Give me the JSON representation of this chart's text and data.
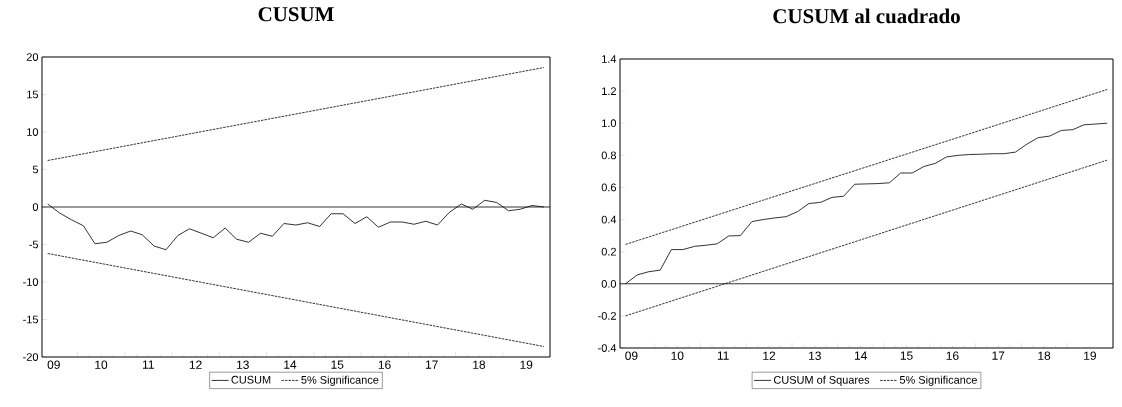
{
  "chart_data": [
    {
      "type": "line",
      "title": "CUSUM",
      "x": [
        "2009-05-15",
        "2009-08-15",
        "2009-11-15",
        "2010-02-15",
        "2010-05-15",
        "2010-08-15",
        "2010-11-15",
        "2011-02-15",
        "2011-05-15",
        "2011-08-15",
        "2011-11-15",
        "2012-02-15",
        "2012-05-15",
        "2012-08-15",
        "2012-11-15",
        "2013-02-15",
        "2013-05-15",
        "2013-08-15",
        "2013-11-15",
        "2014-02-15",
        "2014-05-15",
        "2014-08-15",
        "2014-11-15",
        "2015-02-15",
        "2015-05-15",
        "2015-08-15",
        "2015-11-15",
        "2016-02-15",
        "2016-05-15",
        "2016-08-15",
        "2016-11-15",
        "2017-02-15",
        "2017-05-15",
        "2017-08-15",
        "2017-11-15",
        "2018-02-15",
        "2018-05-15",
        "2018-08-15",
        "2018-11-15",
        "2019-02-15",
        "2019-05-15",
        "2019-08-15",
        "2019-11-15"
      ],
      "series": [
        {
          "name": "CUSUM",
          "color": "#000000",
          "line_style": "solid",
          "values": [
            0.4,
            -0.8,
            -1.7,
            -2.5,
            -4.9,
            -4.7,
            -3.8,
            -3.2,
            -3.7,
            -5.2,
            -5.7,
            -3.8,
            -2.9,
            -3.5,
            -4.1,
            -2.8,
            -4.3,
            -4.7,
            -3.5,
            -3.9,
            -2.2,
            -2.4,
            -2.1,
            -2.6,
            -0.9,
            -0.9,
            -2.2,
            -1.3,
            -2.7,
            -2.0,
            -2.0,
            -2.3,
            -1.9,
            -2.4,
            -0.7,
            0.4,
            -0.3,
            0.9,
            0.6,
            -0.5,
            -0.3,
            0.2,
            0.0
          ]
        },
        {
          "name": "5% Significance",
          "color": "#000000",
          "line_style": "dashed",
          "x": [
            "2009-05-15",
            "2019-11-15"
          ],
          "values": [
            6.2,
            18.6
          ]
        },
        {
          "color": "#000000",
          "line_style": "dashed",
          "x": [
            "2009-05-15",
            "2019-11-15"
          ],
          "values": [
            -6.2,
            -18.6
          ]
        }
      ],
      "xlim": [
        "2009-04-01",
        "2020-01-01"
      ],
      "xticks": [
        {
          "value": "2009-07-01",
          "label": "09"
        },
        {
          "value": "2010-07-01",
          "label": "10"
        },
        {
          "value": "2011-07-01",
          "label": "11"
        },
        {
          "value": "2012-07-01",
          "label": "12"
        },
        {
          "value": "2013-07-01",
          "label": "13"
        },
        {
          "value": "2014-07-01",
          "label": "14"
        },
        {
          "value": "2015-07-01",
          "label": "15"
        },
        {
          "value": "2016-07-01",
          "label": "16"
        },
        {
          "value": "2017-07-01",
          "label": "17"
        },
        {
          "value": "2018-07-01",
          "label": "18"
        },
        {
          "value": "2019-07-01",
          "label": "19"
        },
        {
          "value": "2010-01-01",
          "label": null
        },
        {
          "value": "2011-01-01",
          "label": null
        },
        {
          "value": "2012-01-01",
          "label": null
        },
        {
          "value": "2013-01-01",
          "label": null
        },
        {
          "value": "2014-01-01",
          "label": null
        },
        {
          "value": "2015-01-01",
          "label": null
        },
        {
          "value": "2016-01-01",
          "label": null
        },
        {
          "value": "2017-01-01",
          "label": null
        },
        {
          "value": "2018-01-01",
          "label": null
        },
        {
          "value": "2019-01-01",
          "label": null
        }
      ],
      "ylim": [
        -20,
        20
      ],
      "yticks": [
        -20,
        -15,
        -10,
        -5,
        0,
        5,
        10,
        15,
        20
      ],
      "ref_lines": [
        {
          "axis": "y",
          "value": 0,
          "color": "#000000"
        }
      ],
      "legend": "bottom"
    },
    {
      "type": "line",
      "title": "CUSUM al cuadrado",
      "x": [
        "2009-05-15",
        "2009-08-15",
        "2009-11-15",
        "2010-02-15",
        "2010-05-15",
        "2010-08-15",
        "2010-11-15",
        "2011-02-15",
        "2011-05-15",
        "2011-08-15",
        "2011-11-15",
        "2012-02-15",
        "2012-05-15",
        "2012-08-15",
        "2012-11-15",
        "2013-02-15",
        "2013-05-15",
        "2013-08-15",
        "2013-11-15",
        "2014-02-15",
        "2014-05-15",
        "2014-08-15",
        "2014-11-15",
        "2015-02-15",
        "2015-05-15",
        "2015-08-15",
        "2015-11-15",
        "2016-02-15",
        "2016-05-15",
        "2016-08-15",
        "2016-11-15",
        "2017-02-15",
        "2017-05-15",
        "2017-08-15",
        "2017-11-15",
        "2018-02-15",
        "2018-05-15",
        "2018-08-15",
        "2018-11-15",
        "2019-02-15",
        "2019-05-15",
        "2019-08-15",
        "2019-11-15"
      ],
      "series": [
        {
          "name": "CUSUM of Squares",
          "color": "#000000",
          "line_style": "solid",
          "values": [
            0.0,
            0.055,
            0.075,
            0.085,
            0.213,
            0.213,
            0.233,
            0.24,
            0.249,
            0.298,
            0.3,
            0.387,
            0.4,
            0.41,
            0.418,
            0.45,
            0.5,
            0.507,
            0.538,
            0.545,
            0.62,
            0.622,
            0.624,
            0.629,
            0.69,
            0.69,
            0.73,
            0.75,
            0.79,
            0.8,
            0.805,
            0.807,
            0.81,
            0.81,
            0.82,
            0.87,
            0.91,
            0.92,
            0.955,
            0.96,
            0.99,
            0.995,
            1.0
          ]
        },
        {
          "name": "5% Significance",
          "color": "#000000",
          "line_style": "dashed",
          "x": [
            "2009-05-15",
            "2019-11-15"
          ],
          "values": [
            0.245,
            1.21
          ]
        },
        {
          "color": "#000000",
          "line_style": "dashed",
          "x": [
            "2009-05-15",
            "2019-11-15"
          ],
          "values": [
            -0.2,
            0.77
          ]
        }
      ],
      "xlim": [
        "2009-04-01",
        "2020-01-01"
      ],
      "xticks": [
        {
          "value": "2009-07-01",
          "label": "09"
        },
        {
          "value": "2010-07-01",
          "label": "10"
        },
        {
          "value": "2011-07-01",
          "label": "11"
        },
        {
          "value": "2012-07-01",
          "label": "12"
        },
        {
          "value": "2013-07-01",
          "label": "13"
        },
        {
          "value": "2014-07-01",
          "label": "14"
        },
        {
          "value": "2015-07-01",
          "label": "15"
        },
        {
          "value": "2016-07-01",
          "label": "16"
        },
        {
          "value": "2017-07-01",
          "label": "17"
        },
        {
          "value": "2018-07-01",
          "label": "18"
        },
        {
          "value": "2019-07-01",
          "label": "19"
        },
        {
          "value": "2010-01-01",
          "label": null
        },
        {
          "value": "2011-01-01",
          "label": null
        },
        {
          "value": "2012-01-01",
          "label": null
        },
        {
          "value": "2013-01-01",
          "label": null
        },
        {
          "value": "2014-01-01",
          "label": null
        },
        {
          "value": "2015-01-01",
          "label": null
        },
        {
          "value": "2016-01-01",
          "label": null
        },
        {
          "value": "2017-01-01",
          "label": null
        },
        {
          "value": "2018-01-01",
          "label": null
        },
        {
          "value": "2019-01-01",
          "label": null
        }
      ],
      "ylim": [
        -0.4,
        1.4
      ],
      "yticks": [
        {
          "value": -0.4,
          "label": "-0.4"
        },
        {
          "value": -0.2,
          "label": "-0.2"
        },
        {
          "value": 0,
          "label": "0.0"
        },
        {
          "value": 0.2,
          "label": "0.2"
        },
        {
          "value": 0.4,
          "label": "0.4"
        },
        {
          "value": 0.6,
          "label": "0.6"
        },
        {
          "value": 0.8,
          "label": "0.8"
        },
        {
          "value": 1.0,
          "label": "1.0"
        },
        {
          "value": 1.2,
          "label": "1.2"
        },
        {
          "value": 1.4,
          "label": "1.4"
        }
      ],
      "ref_lines": [
        {
          "axis": "y",
          "value": 0,
          "color": "#000000"
        }
      ],
      "legend": "bottom"
    }
  ]
}
